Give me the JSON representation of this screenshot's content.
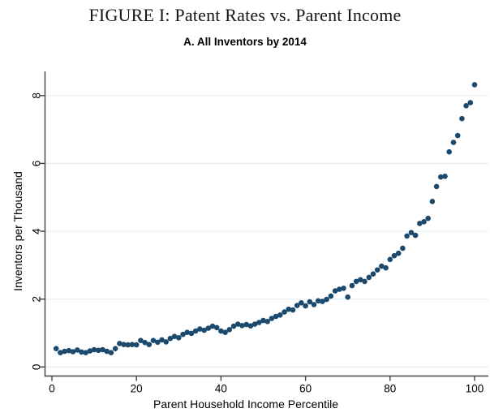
{
  "figure": {
    "title": "FIGURE I: Patent Rates vs. Parent Income",
    "subtitle": "A. All Inventors by 2014"
  },
  "chart_data": {
    "type": "scatter",
    "title": "FIGURE I: Patent Rates vs. Parent Income",
    "subtitle": "A. All Inventors by 2014",
    "xlabel": "Parent Household Income Percentile",
    "ylabel": "Inventors per Thousand",
    "x_ticks": [
      0,
      20,
      40,
      60,
      80,
      100
    ],
    "y_ticks": [
      0,
      2,
      4,
      6,
      8
    ],
    "xlim": [
      -2,
      104
    ],
    "ylim": [
      0,
      8.6
    ],
    "grid": "horizontal-gridlines-only",
    "legend": "none",
    "marker_color": "#1b4a6e",
    "gridline_color": "#e4eff2",
    "axis_color": "#404040",
    "x": [
      1,
      2,
      3,
      4,
      5,
      6,
      7,
      8,
      9,
      10,
      11,
      12,
      13,
      14,
      15,
      16,
      17,
      18,
      19,
      20,
      21,
      22,
      23,
      24,
      25,
      26,
      27,
      28,
      29,
      30,
      31,
      32,
      33,
      34,
      35,
      36,
      37,
      38,
      39,
      40,
      41,
      42,
      43,
      44,
      45,
      46,
      47,
      48,
      49,
      50,
      51,
      52,
      53,
      54,
      55,
      56,
      57,
      58,
      59,
      60,
      61,
      62,
      63,
      64,
      65,
      66,
      67,
      68,
      69,
      70,
      71,
      72,
      73,
      74,
      75,
      76,
      77,
      78,
      79,
      80,
      81,
      82,
      83,
      84,
      85,
      86,
      87,
      88,
      89,
      90,
      91,
      92,
      93,
      94,
      95,
      96,
      97,
      98,
      99,
      100
    ],
    "y": [
      0.54,
      0.42,
      0.46,
      0.48,
      0.45,
      0.5,
      0.44,
      0.42,
      0.47,
      0.51,
      0.49,
      0.51,
      0.46,
      0.42,
      0.54,
      0.69,
      0.66,
      0.65,
      0.66,
      0.65,
      0.78,
      0.72,
      0.66,
      0.78,
      0.73,
      0.8,
      0.74,
      0.84,
      0.9,
      0.86,
      0.96,
      1.02,
      0.99,
      1.06,
      1.12,
      1.08,
      1.14,
      1.2,
      1.16,
      1.06,
      1.02,
      1.1,
      1.2,
      1.26,
      1.22,
      1.25,
      1.21,
      1.26,
      1.31,
      1.37,
      1.34,
      1.43,
      1.49,
      1.53,
      1.62,
      1.7,
      1.68,
      1.81,
      1.89,
      1.8,
      1.92,
      1.84,
      1.95,
      1.93,
      1.99,
      2.09,
      2.24,
      2.29,
      2.32,
      2.06,
      2.4,
      2.52,
      2.57,
      2.52,
      2.64,
      2.74,
      2.86,
      2.97,
      2.92,
      3.17,
      3.28,
      3.35,
      3.5,
      3.86,
      3.96,
      3.88,
      4.23,
      4.28,
      4.38,
      4.88,
      5.32,
      5.6,
      5.62,
      6.34,
      6.62,
      6.82,
      7.32,
      7.7,
      7.79,
      8.32
    ]
  }
}
